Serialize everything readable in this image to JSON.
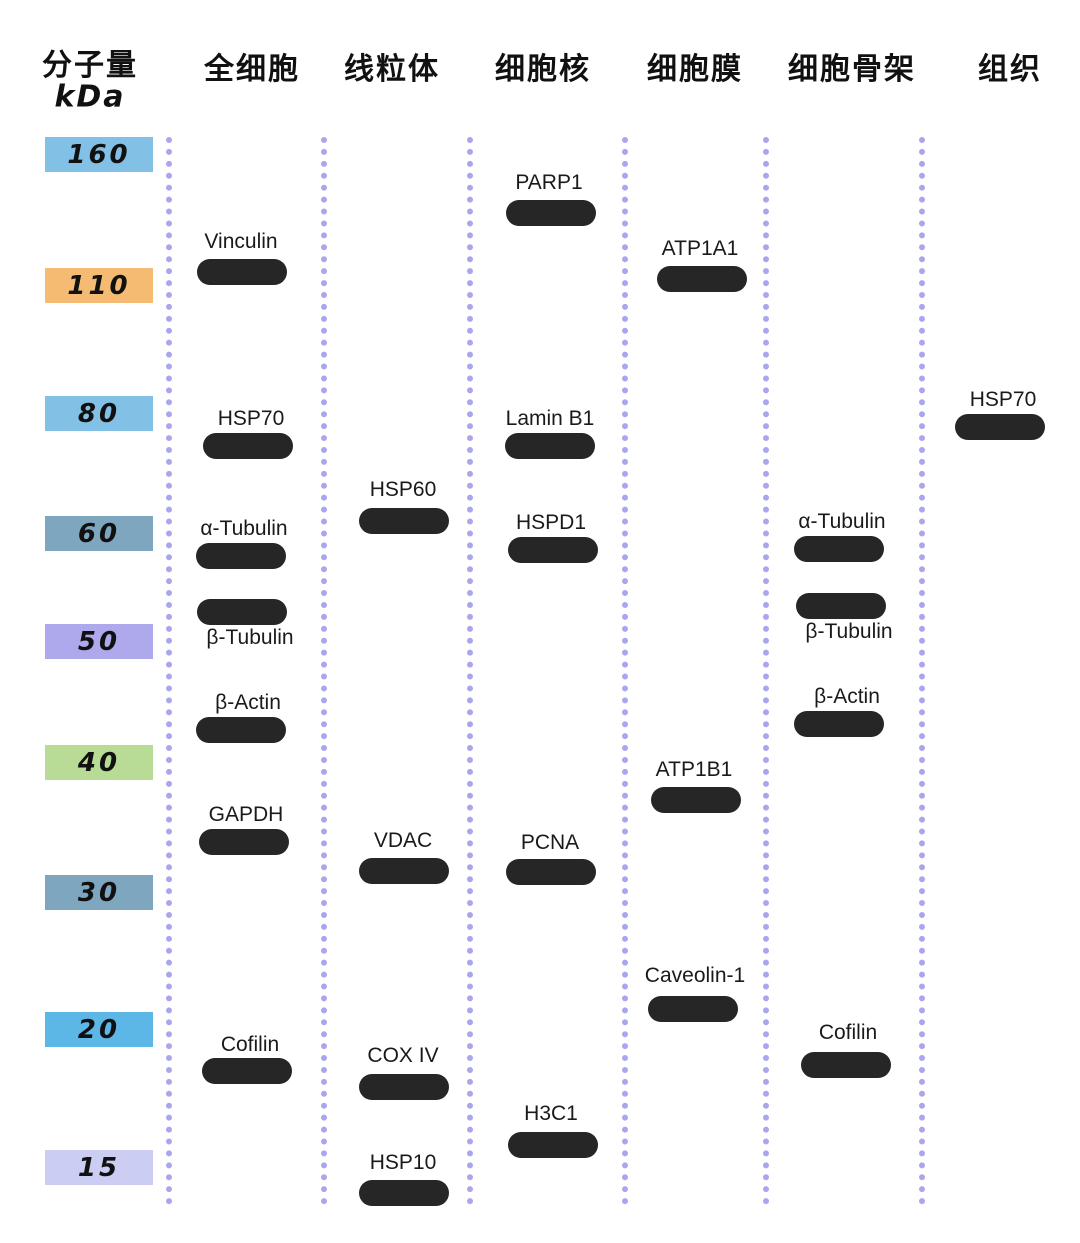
{
  "header": {
    "mw_title_line1": "分子量",
    "mw_title_line2": "kDa",
    "columns": [
      "全细胞",
      "线粒体",
      "细胞核",
      "细胞膜",
      "细胞骨架",
      "组织"
    ]
  },
  "markers": [
    {
      "value": "160",
      "color": "#82c0e6"
    },
    {
      "value": "110",
      "color": "#f5bb73"
    },
    {
      "value": "80",
      "color": "#82c0e6"
    },
    {
      "value": "60",
      "color": "#7ea6bf"
    },
    {
      "value": "50",
      "color": "#ada9ec"
    },
    {
      "value": "40",
      "color": "#b8db96"
    },
    {
      "value": "30",
      "color": "#7ea6bf"
    },
    {
      "value": "20",
      "color": "#5cb6e6"
    },
    {
      "value": "15",
      "color": "#cccdf3"
    }
  ],
  "lanes": [
    {
      "name": "全细胞",
      "proteins": [
        "Vinculin",
        "HSP70",
        "α-Tubulin",
        "β-Tubulin",
        "β-Actin",
        "GAPDH",
        "Cofilin"
      ]
    },
    {
      "name": "线粒体",
      "proteins": [
        "HSP60",
        "VDAC",
        "COX IV",
        "HSP10"
      ]
    },
    {
      "name": "细胞核",
      "proteins": [
        "PARP1",
        "Lamin B1",
        "HSPD1",
        "PCNA",
        "H3C1"
      ]
    },
    {
      "name": "细胞膜",
      "proteins": [
        "ATP1A1",
        "ATP1B1",
        "Caveolin-1"
      ]
    },
    {
      "name": "细胞骨架",
      "proteins": [
        "α-Tubulin",
        "β-Tubulin",
        "β-Actin",
        "Cofilin"
      ]
    },
    {
      "name": "组织",
      "proteins": [
        "HSP70"
      ]
    }
  ],
  "colors": {
    "band": "#262626",
    "lane_divider": "#aaa6ee"
  }
}
